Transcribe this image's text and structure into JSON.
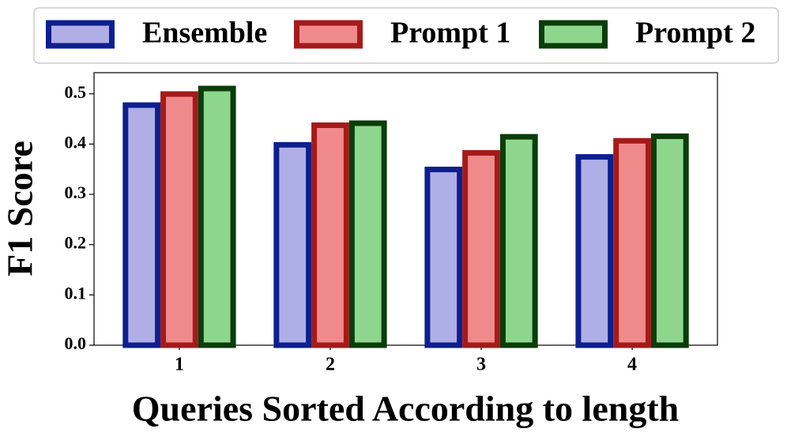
{
  "chart_data": {
    "type": "bar",
    "x_label": "Queries Sorted According to length",
    "y_label": "F1 Score",
    "categories": [
      "1",
      "2",
      "3",
      "4"
    ],
    "series": [
      {
        "name": "Ensemble",
        "color": "#b0aee6",
        "edge_color": "#0d1f8f",
        "values": [
          0.483,
          0.404,
          0.355,
          0.38
        ]
      },
      {
        "name": "Prompt 1",
        "color": "#f08a8a",
        "edge_color": "#a51a1a",
        "values": [
          0.505,
          0.443,
          0.388,
          0.412
        ]
      },
      {
        "name": "Prompt 2",
        "color": "#8ed68e",
        "edge_color": "#0a3d0a",
        "values": [
          0.516,
          0.447,
          0.42,
          0.421
        ]
      }
    ],
    "ylim": [
      0,
      0.542
    ],
    "yticks": [
      {
        "value": 0,
        "label": "0.0"
      },
      0.1,
      0.2,
      0.3,
      0.4,
      0.5
    ],
    "grid": false,
    "legend": "top"
  }
}
